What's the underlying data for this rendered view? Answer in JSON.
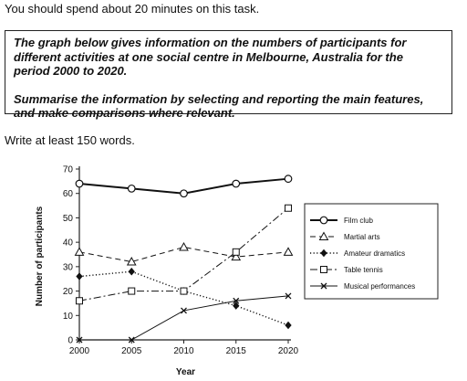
{
  "instructions": {
    "intro": "You should spend about 20 minutes on this task.",
    "task_line_1": "The graph below gives information on the numbers of participants for different activities at one social centre in Melbourne, Australia for the period 2000 to 2020.",
    "task_line_2": "Summarise the information by selecting and reporting the main features, and make comparisons where relevant.",
    "word_count": "Write at least 150 words."
  },
  "chart_data": {
    "type": "line",
    "title": "",
    "xlabel": "Year",
    "ylabel": "Number of participants",
    "x": [
      2000,
      2005,
      2010,
      2015,
      2020
    ],
    "ylim": [
      0,
      70
    ],
    "yticks": [
      0,
      10,
      20,
      30,
      40,
      50,
      60,
      70
    ],
    "grid": false,
    "legend_position": "right",
    "series": [
      {
        "name": "Film club",
        "values": [
          64,
          62,
          60,
          64,
          66
        ],
        "marker": "circle",
        "style": "solid-thick"
      },
      {
        "name": "Martial arts",
        "values": [
          36,
          32,
          38,
          34,
          36
        ],
        "marker": "triangle",
        "style": "dashed"
      },
      {
        "name": "Amateur dramatics",
        "values": [
          26,
          28,
          20,
          14,
          6
        ],
        "marker": "diamond",
        "style": "dotted"
      },
      {
        "name": "Table tennis",
        "values": [
          16,
          20,
          20,
          36,
          54
        ],
        "marker": "square",
        "style": "dashdot"
      },
      {
        "name": "Musical performances",
        "values": [
          0,
          0,
          12,
          16,
          18
        ],
        "marker": "x",
        "style": "solid-thin"
      }
    ]
  }
}
